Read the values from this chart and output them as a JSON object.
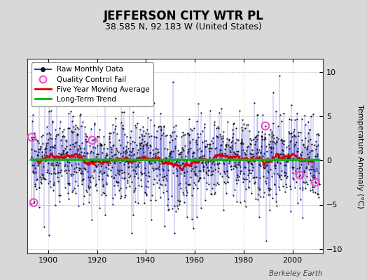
{
  "title": "JEFFERSON CITY WTR PL",
  "subtitle": "38.585 N, 92.183 W (United States)",
  "ylabel": "Temperature Anomaly (°C)",
  "attribution": "Berkeley Earth",
  "year_start": 1893,
  "year_end": 2011,
  "ylim": [
    -10.5,
    11.5
  ],
  "yticks": [
    -10,
    -5,
    0,
    5,
    10
  ],
  "xticks": [
    1900,
    1920,
    1940,
    1960,
    1980,
    2000
  ],
  "background_color": "#d8d8d8",
  "plot_bg_color": "#ffffff",
  "raw_line_color": "#3333cc",
  "raw_dot_color": "#111111",
  "ma_color": "#dd0000",
  "trend_color": "#00bb00",
  "qc_color": "#ff44cc",
  "seed": 17,
  "n_months": 1416,
  "trend_slope": 0.0008,
  "trend_intercept": -0.05,
  "ma_window": 60,
  "figwidth": 5.24,
  "figheight": 4.0,
  "dpi": 100
}
